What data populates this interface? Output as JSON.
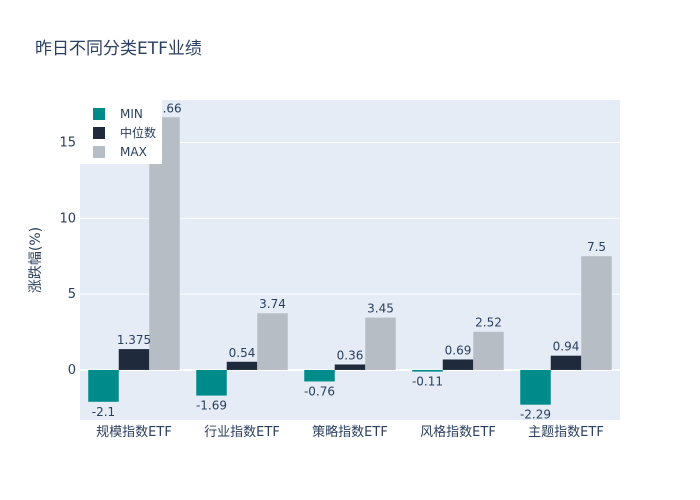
{
  "chart_data": {
    "type": "bar",
    "title": "昨日不同分类ETF业绩",
    "xlabel": "",
    "ylabel": "涨跌幅(%)",
    "categories": [
      "规模指数ETF",
      "行业指数ETF",
      "策略指数ETF",
      "风格指数ETF",
      "主题指数ETF"
    ],
    "series": [
      {
        "name": "MIN",
        "color": "#008b8b",
        "values": [
          -2.1,
          -1.69,
          -0.76,
          -0.11,
          -2.29
        ],
        "labels": [
          "-2.1",
          "-1.69",
          "-0.76",
          "-0.11",
          "-2.29"
        ]
      },
      {
        "name": "中位数",
        "color": "#1f2a3d",
        "values": [
          1.375,
          0.54,
          0.36,
          0.69,
          0.94
        ],
        "labels": [
          "1.375",
          "0.54",
          "0.36",
          "0.69",
          "0.94"
        ]
      },
      {
        "name": "MAX",
        "color": "#b7bdc4",
        "values": [
          16.66,
          3.74,
          3.45,
          2.52,
          7.5
        ],
        "labels": [
          "16.66",
          "3.74",
          "3.45",
          "2.52",
          "7.5"
        ]
      }
    ],
    "ylim": [
      -3.3,
      17.8
    ],
    "yticks": [
      0,
      5,
      10,
      15
    ],
    "grid": true,
    "legend_position": "top-left"
  },
  "colors": {
    "plot_bg": "#e5ecf6",
    "grid": "#ffffff",
    "text": "#2a3f5f"
  }
}
